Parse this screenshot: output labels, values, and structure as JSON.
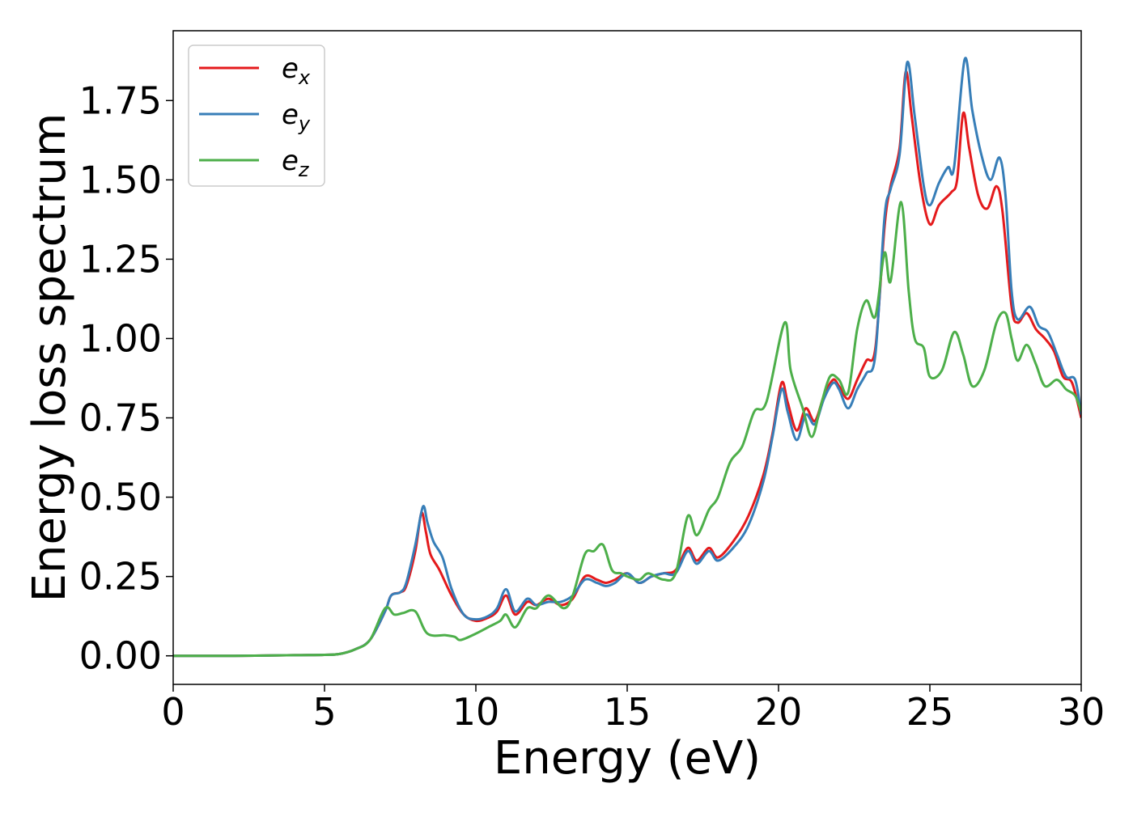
{
  "chart_data": {
    "type": "line",
    "xlabel": "Energy (eV)",
    "ylabel": "Energy loss spectrum",
    "xlim": [
      0,
      30
    ],
    "ylim": [
      -0.09,
      1.97
    ],
    "xticks": [
      0,
      5,
      10,
      15,
      20,
      25,
      30
    ],
    "xtick_labels": [
      "0",
      "5",
      "10",
      "15",
      "20",
      "25",
      "30"
    ],
    "yticks": [
      0,
      0.25,
      0.5,
      0.75,
      1.0,
      1.25,
      1.5,
      1.75
    ],
    "ytick_labels": [
      "0.00",
      "0.25",
      "0.50",
      "0.75",
      "1.00",
      "1.25",
      "1.50",
      "1.75"
    ],
    "grid": false,
    "legend_position": "upper-left",
    "series": [
      {
        "name": "e_x",
        "label_base": "e",
        "label_sub": "x",
        "color": "#e41a1c",
        "points": [
          [
            0,
            0
          ],
          [
            2,
            0
          ],
          [
            4,
            0.002
          ],
          [
            5,
            0.003
          ],
          [
            5.5,
            0.006
          ],
          [
            6,
            0.02
          ],
          [
            6.5,
            0.05
          ],
          [
            7,
            0.14
          ],
          [
            7.2,
            0.19
          ],
          [
            7.5,
            0.2
          ],
          [
            7.7,
            0.22
          ],
          [
            8,
            0.33
          ],
          [
            8.2,
            0.45
          ],
          [
            8.35,
            0.39
          ],
          [
            8.5,
            0.32
          ],
          [
            8.8,
            0.27
          ],
          [
            9.2,
            0.19
          ],
          [
            9.6,
            0.13
          ],
          [
            10,
            0.11
          ],
          [
            10.4,
            0.12
          ],
          [
            10.7,
            0.14
          ],
          [
            11,
            0.19
          ],
          [
            11.3,
            0.13
          ],
          [
            11.7,
            0.17
          ],
          [
            12,
            0.16
          ],
          [
            12.4,
            0.18
          ],
          [
            12.8,
            0.16
          ],
          [
            13.2,
            0.18
          ],
          [
            13.6,
            0.25
          ],
          [
            14,
            0.24
          ],
          [
            14.3,
            0.23
          ],
          [
            14.6,
            0.24
          ],
          [
            15,
            0.26
          ],
          [
            15.4,
            0.23
          ],
          [
            15.8,
            0.25
          ],
          [
            16.2,
            0.26
          ],
          [
            16.6,
            0.27
          ],
          [
            17,
            0.34
          ],
          [
            17.3,
            0.3
          ],
          [
            17.7,
            0.34
          ],
          [
            18,
            0.31
          ],
          [
            18.5,
            0.36
          ],
          [
            19,
            0.44
          ],
          [
            19.5,
            0.57
          ],
          [
            19.8,
            0.7
          ],
          [
            20.1,
            0.86
          ],
          [
            20.3,
            0.8
          ],
          [
            20.6,
            0.71
          ],
          [
            20.9,
            0.78
          ],
          [
            21.2,
            0.74
          ],
          [
            21.5,
            0.82
          ],
          [
            21.8,
            0.87
          ],
          [
            22,
            0.85
          ],
          [
            22.3,
            0.81
          ],
          [
            22.6,
            0.87
          ],
          [
            22.9,
            0.93
          ],
          [
            23.2,
            0.97
          ],
          [
            23.5,
            1.35
          ],
          [
            23.7,
            1.48
          ],
          [
            24,
            1.6
          ],
          [
            24.2,
            1.84
          ],
          [
            24.4,
            1.7
          ],
          [
            24.7,
            1.48
          ],
          [
            25,
            1.36
          ],
          [
            25.3,
            1.42
          ],
          [
            25.7,
            1.46
          ],
          [
            25.9,
            1.5
          ],
          [
            26.1,
            1.71
          ],
          [
            26.3,
            1.6
          ],
          [
            26.6,
            1.45
          ],
          [
            26.9,
            1.41
          ],
          [
            27.2,
            1.48
          ],
          [
            27.4,
            1.4
          ],
          [
            27.7,
            1.1
          ],
          [
            27.9,
            1.05
          ],
          [
            28.2,
            1.08
          ],
          [
            28.5,
            1.03
          ],
          [
            28.8,
            1.0
          ],
          [
            29.1,
            0.96
          ],
          [
            29.4,
            0.88
          ],
          [
            29.7,
            0.86
          ],
          [
            30,
            0.75
          ]
        ]
      },
      {
        "name": "e_y",
        "label_base": "e",
        "label_sub": "y",
        "color": "#377eb8",
        "points": [
          [
            0,
            0
          ],
          [
            2,
            0
          ],
          [
            4,
            0.002
          ],
          [
            5,
            0.003
          ],
          [
            5.5,
            0.006
          ],
          [
            6,
            0.02
          ],
          [
            6.5,
            0.05
          ],
          [
            7,
            0.14
          ],
          [
            7.2,
            0.19
          ],
          [
            7.5,
            0.2
          ],
          [
            7.7,
            0.23
          ],
          [
            8,
            0.35
          ],
          [
            8.25,
            0.47
          ],
          [
            8.4,
            0.42
          ],
          [
            8.6,
            0.36
          ],
          [
            8.9,
            0.31
          ],
          [
            9.2,
            0.21
          ],
          [
            9.6,
            0.13
          ],
          [
            10,
            0.115
          ],
          [
            10.4,
            0.125
          ],
          [
            10.7,
            0.15
          ],
          [
            11,
            0.21
          ],
          [
            11.3,
            0.14
          ],
          [
            11.7,
            0.18
          ],
          [
            12,
            0.16
          ],
          [
            12.4,
            0.17
          ],
          [
            12.8,
            0.17
          ],
          [
            13.2,
            0.19
          ],
          [
            13.6,
            0.24
          ],
          [
            14,
            0.23
          ],
          [
            14.3,
            0.22
          ],
          [
            14.6,
            0.23
          ],
          [
            15,
            0.26
          ],
          [
            15.4,
            0.23
          ],
          [
            15.8,
            0.25
          ],
          [
            16.2,
            0.26
          ],
          [
            16.6,
            0.26
          ],
          [
            17,
            0.33
          ],
          [
            17.3,
            0.29
          ],
          [
            17.7,
            0.33
          ],
          [
            18,
            0.3
          ],
          [
            18.5,
            0.34
          ],
          [
            19,
            0.41
          ],
          [
            19.5,
            0.55
          ],
          [
            19.8,
            0.69
          ],
          [
            20.1,
            0.84
          ],
          [
            20.3,
            0.77
          ],
          [
            20.6,
            0.68
          ],
          [
            20.9,
            0.76
          ],
          [
            21.2,
            0.73
          ],
          [
            21.5,
            0.81
          ],
          [
            21.8,
            0.86
          ],
          [
            22,
            0.84
          ],
          [
            22.3,
            0.78
          ],
          [
            22.6,
            0.84
          ],
          [
            22.9,
            0.89
          ],
          [
            23.2,
            0.95
          ],
          [
            23.5,
            1.38
          ],
          [
            23.7,
            1.47
          ],
          [
            24,
            1.58
          ],
          [
            24.25,
            1.87
          ],
          [
            24.5,
            1.7
          ],
          [
            24.8,
            1.48
          ],
          [
            25,
            1.42
          ],
          [
            25.3,
            1.49
          ],
          [
            25.6,
            1.54
          ],
          [
            25.8,
            1.54
          ],
          [
            26.15,
            1.88
          ],
          [
            26.4,
            1.72
          ],
          [
            26.7,
            1.58
          ],
          [
            27,
            1.5
          ],
          [
            27.3,
            1.57
          ],
          [
            27.5,
            1.45
          ],
          [
            27.7,
            1.15
          ],
          [
            27.9,
            1.06
          ],
          [
            28.3,
            1.1
          ],
          [
            28.6,
            1.04
          ],
          [
            28.9,
            1.02
          ],
          [
            29.2,
            0.95
          ],
          [
            29.5,
            0.88
          ],
          [
            29.8,
            0.87
          ],
          [
            30,
            0.76
          ]
        ]
      },
      {
        "name": "e_z",
        "label_base": "e",
        "label_sub": "z",
        "color": "#4daf4a",
        "points": [
          [
            0,
            0
          ],
          [
            2,
            0
          ],
          [
            4,
            0.002
          ],
          [
            5,
            0.003
          ],
          [
            5.5,
            0.006
          ],
          [
            6,
            0.02
          ],
          [
            6.5,
            0.05
          ],
          [
            7,
            0.15
          ],
          [
            7.3,
            0.13
          ],
          [
            7.6,
            0.135
          ],
          [
            8,
            0.14
          ],
          [
            8.4,
            0.07
          ],
          [
            9,
            0.065
          ],
          [
            9.3,
            0.06
          ],
          [
            9.5,
            0.05
          ],
          [
            10,
            0.07
          ],
          [
            10.4,
            0.09
          ],
          [
            10.8,
            0.11
          ],
          [
            11,
            0.13
          ],
          [
            11.3,
            0.09
          ],
          [
            11.7,
            0.15
          ],
          [
            12,
            0.15
          ],
          [
            12.4,
            0.19
          ],
          [
            12.9,
            0.15
          ],
          [
            13.2,
            0.19
          ],
          [
            13.6,
            0.32
          ],
          [
            13.9,
            0.33
          ],
          [
            14.2,
            0.35
          ],
          [
            14.5,
            0.27
          ],
          [
            14.8,
            0.26
          ],
          [
            15,
            0.25
          ],
          [
            15.4,
            0.24
          ],
          [
            15.7,
            0.26
          ],
          [
            16.2,
            0.24
          ],
          [
            16.6,
            0.26
          ],
          [
            17,
            0.44
          ],
          [
            17.3,
            0.38
          ],
          [
            17.7,
            0.46
          ],
          [
            18,
            0.5
          ],
          [
            18.4,
            0.61
          ],
          [
            18.8,
            0.66
          ],
          [
            19.2,
            0.77
          ],
          [
            19.6,
            0.8
          ],
          [
            20.2,
            1.05
          ],
          [
            20.4,
            0.9
          ],
          [
            20.8,
            0.78
          ],
          [
            21.1,
            0.69
          ],
          [
            21.4,
            0.79
          ],
          [
            21.7,
            0.88
          ],
          [
            22,
            0.87
          ],
          [
            22.3,
            0.83
          ],
          [
            22.6,
            1.03
          ],
          [
            22.9,
            1.12
          ],
          [
            23.2,
            1.07
          ],
          [
            23.5,
            1.27
          ],
          [
            23.7,
            1.18
          ],
          [
            24.05,
            1.43
          ],
          [
            24.3,
            1.15
          ],
          [
            24.5,
            1.0
          ],
          [
            24.8,
            0.97
          ],
          [
            25,
            0.88
          ],
          [
            25.4,
            0.9
          ],
          [
            25.8,
            1.02
          ],
          [
            26.1,
            0.95
          ],
          [
            26.4,
            0.85
          ],
          [
            26.8,
            0.9
          ],
          [
            27.2,
            1.05
          ],
          [
            27.5,
            1.08
          ],
          [
            27.7,
            1.0
          ],
          [
            27.9,
            0.93
          ],
          [
            28.2,
            0.98
          ],
          [
            28.5,
            0.92
          ],
          [
            28.8,
            0.85
          ],
          [
            29.2,
            0.87
          ],
          [
            29.5,
            0.84
          ],
          [
            29.8,
            0.82
          ],
          [
            30,
            0.77
          ]
        ]
      }
    ]
  }
}
